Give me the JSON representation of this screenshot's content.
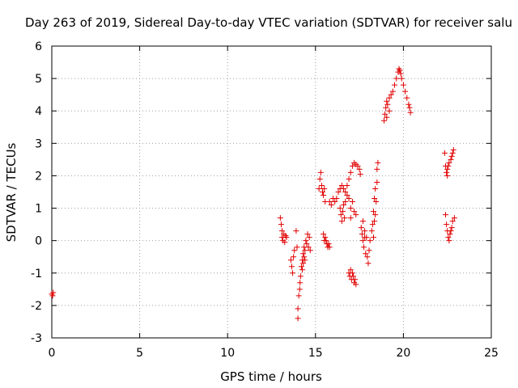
{
  "chart_data": {
    "type": "scatter",
    "title": "Day 263 of 2019, Sidereal Day-to-day VTEC variation (SDTVAR) for receiver salu",
    "xlabel": "GPS time / hours",
    "ylabel": "SDTVAR / TECUs",
    "xlim": [
      0,
      25
    ],
    "ylim": [
      -3,
      6
    ],
    "xticks": [
      0,
      5,
      10,
      15,
      20,
      25
    ],
    "yticks": [
      -3,
      -2,
      -1,
      0,
      1,
      2,
      3,
      4,
      5,
      6
    ],
    "grid": true,
    "marker": "+",
    "marker_color": "#e00000",
    "series": [
      {
        "points": [
          [
            0.0,
            -1.65
          ],
          [
            0.05,
            -1.7
          ],
          [
            0.08,
            -1.6
          ],
          [
            13.0,
            0.7
          ],
          [
            13.05,
            0.5
          ],
          [
            13.1,
            0.3
          ],
          [
            13.1,
            0.1
          ],
          [
            13.15,
            0.0
          ],
          [
            13.2,
            0.2
          ],
          [
            13.25,
            -0.05
          ],
          [
            13.3,
            0.15
          ],
          [
            13.35,
            0.1
          ],
          [
            13.6,
            -0.6
          ],
          [
            13.65,
            -0.8
          ],
          [
            13.7,
            -1.0
          ],
          [
            13.75,
            -0.5
          ],
          [
            13.8,
            -0.3
          ],
          [
            13.9,
            0.3
          ],
          [
            13.95,
            -0.2
          ],
          [
            14.0,
            -2.4
          ],
          [
            14.0,
            -2.1
          ],
          [
            14.05,
            -1.7
          ],
          [
            14.1,
            -1.5
          ],
          [
            14.12,
            -1.3
          ],
          [
            14.15,
            -1.1
          ],
          [
            14.2,
            -0.8
          ],
          [
            14.25,
            -0.6
          ],
          [
            14.3,
            -0.4
          ],
          [
            14.35,
            -0.2
          ],
          [
            14.4,
            -0.3
          ],
          [
            14.45,
            0.0
          ],
          [
            14.5,
            -0.1
          ],
          [
            14.55,
            0.2
          ],
          [
            14.6,
            -0.2
          ],
          [
            14.65,
            0.1
          ],
          [
            14.7,
            -0.3
          ],
          [
            14.25,
            -0.9
          ],
          [
            14.3,
            -0.7
          ],
          [
            14.35,
            -0.5
          ],
          [
            14.4,
            -0.6
          ],
          [
            15.2,
            1.6
          ],
          [
            15.25,
            1.9
          ],
          [
            15.3,
            2.1
          ],
          [
            15.35,
            1.7
          ],
          [
            15.4,
            1.5
          ],
          [
            15.45,
            1.4
          ],
          [
            15.5,
            1.6
          ],
          [
            15.55,
            1.2
          ],
          [
            15.45,
            0.2
          ],
          [
            15.5,
            0.0
          ],
          [
            15.55,
            0.1
          ],
          [
            15.6,
            0.0
          ],
          [
            15.65,
            -0.1
          ],
          [
            15.7,
            -0.2
          ],
          [
            15.75,
            -0.1
          ],
          [
            15.8,
            -0.2
          ],
          [
            15.8,
            1.2
          ],
          [
            15.9,
            1.1
          ],
          [
            16.0,
            1.3
          ],
          [
            16.1,
            1.2
          ],
          [
            16.2,
            1.3
          ],
          [
            16.3,
            1.5
          ],
          [
            16.4,
            1.6
          ],
          [
            16.5,
            1.7
          ],
          [
            16.6,
            1.6
          ],
          [
            16.7,
            1.5
          ],
          [
            16.8,
            1.7
          ],
          [
            16.9,
            1.9
          ],
          [
            17.0,
            2.1
          ],
          [
            17.1,
            2.3
          ],
          [
            17.2,
            2.4
          ],
          [
            17.3,
            2.35
          ],
          [
            17.4,
            2.3
          ],
          [
            17.5,
            2.2
          ],
          [
            17.55,
            2.05
          ],
          [
            16.4,
            1.0
          ],
          [
            16.45,
            0.8
          ],
          [
            16.5,
            0.6
          ],
          [
            16.55,
            0.9
          ],
          [
            16.6,
            1.1
          ],
          [
            16.65,
            0.7
          ],
          [
            16.7,
            1.2
          ],
          [
            16.8,
            1.4
          ],
          [
            16.9,
            1.3
          ],
          [
            17.0,
            1.0
          ],
          [
            17.1,
            1.2
          ],
          [
            17.2,
            0.9
          ],
          [
            17.3,
            0.8
          ],
          [
            17.0,
            0.7
          ],
          [
            16.9,
            -1.0
          ],
          [
            16.95,
            -1.1
          ],
          [
            17.0,
            -0.9
          ],
          [
            17.05,
            -1.2
          ],
          [
            17.1,
            -1.0
          ],
          [
            17.15,
            -1.1
          ],
          [
            17.2,
            -1.3
          ],
          [
            17.25,
            -1.2
          ],
          [
            17.3,
            -1.35
          ],
          [
            17.6,
            0.4
          ],
          [
            17.65,
            0.2
          ],
          [
            17.7,
            0.0
          ],
          [
            17.75,
            -0.2
          ],
          [
            17.8,
            0.3
          ],
          [
            17.85,
            -0.4
          ],
          [
            17.9,
            0.1
          ],
          [
            17.95,
            -0.5
          ],
          [
            18.0,
            -0.7
          ],
          [
            18.05,
            -0.3
          ],
          [
            18.1,
            0.0
          ],
          [
            17.7,
            0.6
          ],
          [
            17.8,
            0.1
          ],
          [
            18.2,
            0.3
          ],
          [
            18.25,
            0.5
          ],
          [
            18.3,
            0.9
          ],
          [
            18.35,
            1.3
          ],
          [
            18.4,
            1.6
          ],
          [
            18.45,
            1.2
          ],
          [
            18.5,
            1.8
          ],
          [
            18.5,
            2.2
          ],
          [
            18.55,
            2.4
          ],
          [
            18.4,
            0.8
          ],
          [
            18.3,
            0.1
          ],
          [
            18.35,
            0.6
          ],
          [
            18.9,
            3.7
          ],
          [
            18.95,
            3.9
          ],
          [
            19.0,
            4.1
          ],
          [
            19.05,
            4.3
          ],
          [
            19.1,
            4.2
          ],
          [
            19.2,
            4.4
          ],
          [
            19.3,
            4.5
          ],
          [
            19.4,
            4.6
          ],
          [
            19.5,
            4.8
          ],
          [
            19.6,
            5.0
          ],
          [
            19.7,
            5.2
          ],
          [
            19.75,
            5.3
          ],
          [
            19.8,
            5.25
          ],
          [
            19.85,
            5.15
          ],
          [
            19.9,
            5.0
          ],
          [
            20.0,
            4.8
          ],
          [
            20.1,
            4.6
          ],
          [
            20.2,
            4.4
          ],
          [
            20.3,
            4.2
          ],
          [
            20.35,
            4.1
          ],
          [
            20.4,
            3.95
          ],
          [
            19.05,
            3.8
          ],
          [
            19.2,
            4.0
          ],
          [
            22.35,
            2.7
          ],
          [
            22.4,
            2.3
          ],
          [
            22.45,
            2.1
          ],
          [
            22.5,
            2.2
          ],
          [
            22.55,
            2.3
          ],
          [
            22.6,
            2.4
          ],
          [
            22.7,
            2.5
          ],
          [
            22.75,
            2.6
          ],
          [
            22.8,
            2.7
          ],
          [
            22.85,
            2.8
          ],
          [
            22.5,
            2.0
          ],
          [
            22.4,
            0.8
          ],
          [
            22.45,
            0.5
          ],
          [
            22.5,
            0.3
          ],
          [
            22.55,
            0.1
          ],
          [
            22.6,
            0.0
          ],
          [
            22.65,
            0.2
          ],
          [
            22.7,
            0.3
          ],
          [
            22.75,
            0.4
          ],
          [
            22.8,
            0.6
          ],
          [
            22.9,
            0.7
          ]
        ]
      }
    ]
  }
}
